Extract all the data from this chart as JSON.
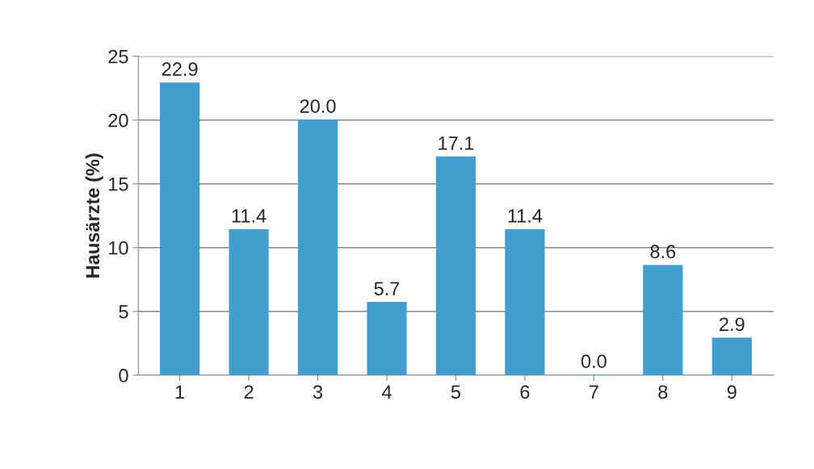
{
  "chart_data": {
    "type": "bar",
    "ylabel": "Hausärzte (%)",
    "categories": [
      "1",
      "2",
      "3",
      "4",
      "5",
      "6",
      "7",
      "8",
      "9"
    ],
    "values": [
      22.9,
      11.4,
      20.0,
      5.7,
      17.1,
      11.4,
      0.0,
      8.6,
      2.9
    ],
    "value_labels": [
      "22.9",
      "11.4",
      "20.0",
      "5.7",
      "17.1",
      "11.4",
      "0.0",
      "8.6",
      "2.9"
    ],
    "color": "#429ecf",
    "ylim": [
      0,
      25
    ],
    "yticks": [
      0,
      5,
      10,
      15,
      20,
      25
    ],
    "grid": "y"
  }
}
